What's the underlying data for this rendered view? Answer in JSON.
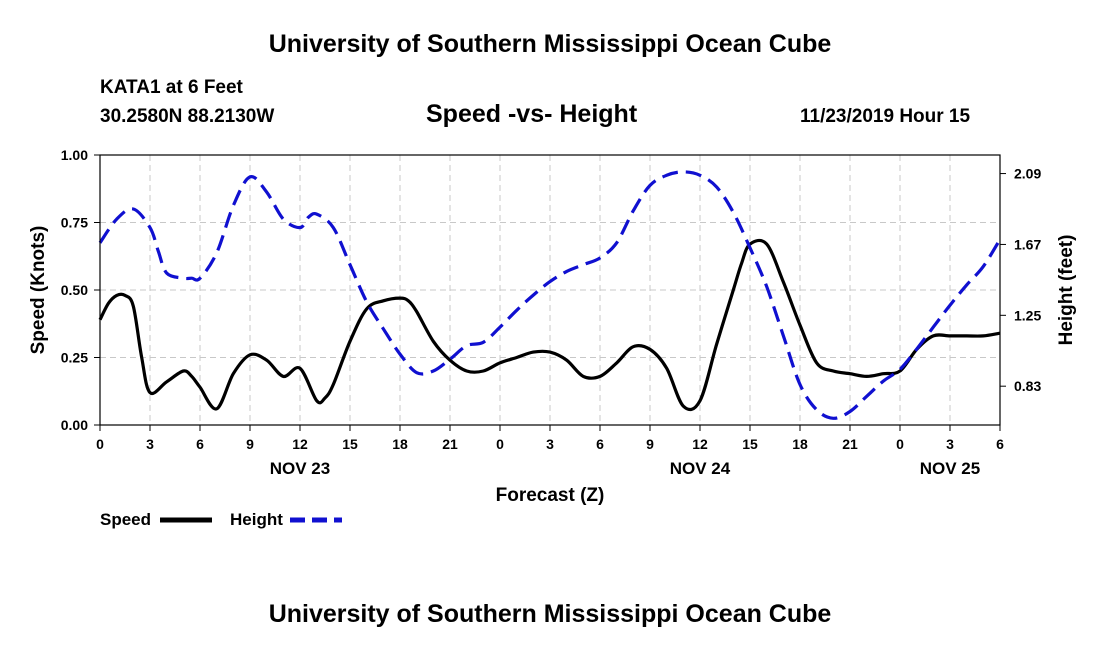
{
  "header": {
    "title_top": "University of Southern Mississippi Ocean Cube",
    "station": "KATA1 at 6 Feet",
    "coords": "30.2580N 88.2130W",
    "chart_title": "Speed -vs- Height",
    "timestamp": "11/23/2019 Hour 15",
    "title_bottom": "University of Southern Mississippi Ocean Cube"
  },
  "legend": {
    "speed_label": "Speed",
    "height_label": "Height"
  },
  "colors": {
    "speed": "#000000",
    "height": "#1010d0",
    "grid": "#c8c8c8"
  },
  "chart_data": {
    "type": "line",
    "title": "Speed -vs- Height",
    "xlabel": "Forecast (Z)",
    "ylabel": "Speed (Knots)",
    "y2label": "Height (feet)",
    "xlim": [
      0,
      54
    ],
    "ylim": [
      0,
      1
    ],
    "y2lim": [
      0.6,
      2.2
    ],
    "x_ticks": [
      0,
      3,
      6,
      9,
      12,
      15,
      18,
      21,
      24,
      27,
      30,
      33,
      36,
      39,
      42,
      45,
      48,
      51,
      54
    ],
    "x_tick_labels": [
      "0",
      "3",
      "6",
      "9",
      "12",
      "15",
      "18",
      "21",
      "0",
      "3",
      "6",
      "9",
      "12",
      "15",
      "18",
      "21",
      "0",
      "3",
      "6"
    ],
    "date_labels": [
      {
        "x": 12,
        "label": "NOV 23"
      },
      {
        "x": 36,
        "label": "NOV 24"
      },
      {
        "x": 51,
        "label": "NOV 25"
      }
    ],
    "y_ticks": [
      0,
      0.25,
      0.5,
      0.75,
      1.0
    ],
    "y_tick_labels": [
      "0.00",
      "0.25",
      "0.50",
      "0.75",
      "1.00"
    ],
    "y2_ticks": [
      0.83,
      1.25,
      1.67,
      2.09
    ],
    "y2_tick_labels": [
      "0.83",
      "1.25",
      "1.67",
      "2.09"
    ],
    "grid": true,
    "series": [
      {
        "name": "Speed",
        "axis": "left",
        "style": "solid",
        "x": [
          0,
          0.5,
          1,
          1.5,
          2,
          2.5,
          3,
          4,
          5,
          5.5,
          6,
          7,
          8,
          9,
          10,
          11,
          12,
          13,
          13.5,
          14,
          15,
          16,
          17,
          18,
          18.5,
          19,
          20,
          21,
          22,
          23,
          24,
          25,
          26,
          27,
          28,
          29,
          30,
          31,
          32,
          33,
          34,
          35,
          36,
          37,
          38,
          38.5,
          39,
          40,
          41,
          42,
          43,
          44,
          45,
          46,
          47,
          48,
          49,
          50,
          51,
          52,
          53,
          54
        ],
        "values": [
          0.39,
          0.45,
          0.48,
          0.48,
          0.44,
          0.25,
          0.12,
          0.16,
          0.2,
          0.18,
          0.14,
          0.06,
          0.19,
          0.26,
          0.24,
          0.18,
          0.21,
          0.09,
          0.1,
          0.15,
          0.31,
          0.43,
          0.46,
          0.47,
          0.46,
          0.42,
          0.31,
          0.24,
          0.2,
          0.2,
          0.23,
          0.25,
          0.27,
          0.27,
          0.24,
          0.18,
          0.18,
          0.23,
          0.29,
          0.28,
          0.21,
          0.07,
          0.09,
          0.3,
          0.5,
          0.6,
          0.67,
          0.67,
          0.53,
          0.37,
          0.23,
          0.2,
          0.19,
          0.18,
          0.19,
          0.2,
          0.28,
          0.33,
          0.33,
          0.33,
          0.33,
          0.34
        ]
      },
      {
        "name": "Height",
        "axis": "right",
        "style": "dashed",
        "x": [
          0,
          1,
          2,
          3,
          3.5,
          4,
          5,
          5.5,
          6,
          7,
          8,
          9,
          10,
          11,
          12,
          12.5,
          13,
          14,
          15,
          16,
          17,
          18,
          19,
          20,
          21,
          22,
          23,
          24,
          25,
          26,
          27,
          28,
          29,
          30,
          31,
          32,
          33,
          34,
          35,
          36,
          37,
          38,
          39,
          40,
          41,
          42,
          43,
          44,
          45,
          46,
          47,
          48,
          49,
          50,
          51,
          52,
          53,
          54
        ],
        "values": [
          1.68,
          1.82,
          1.88,
          1.77,
          1.63,
          1.5,
          1.47,
          1.47,
          1.47,
          1.62,
          1.9,
          2.07,
          1.98,
          1.82,
          1.77,
          1.83,
          1.85,
          1.77,
          1.55,
          1.33,
          1.17,
          1.02,
          0.91,
          0.92,
          0.99,
          1.07,
          1.09,
          1.18,
          1.28,
          1.37,
          1.45,
          1.51,
          1.55,
          1.59,
          1.68,
          1.87,
          2.02,
          2.08,
          2.1,
          2.08,
          2.01,
          1.86,
          1.65,
          1.42,
          1.13,
          0.84,
          0.69,
          0.64,
          0.68,
          0.77,
          0.86,
          0.93,
          1.05,
          1.18,
          1.31,
          1.43,
          1.54,
          1.7
        ]
      }
    ]
  }
}
